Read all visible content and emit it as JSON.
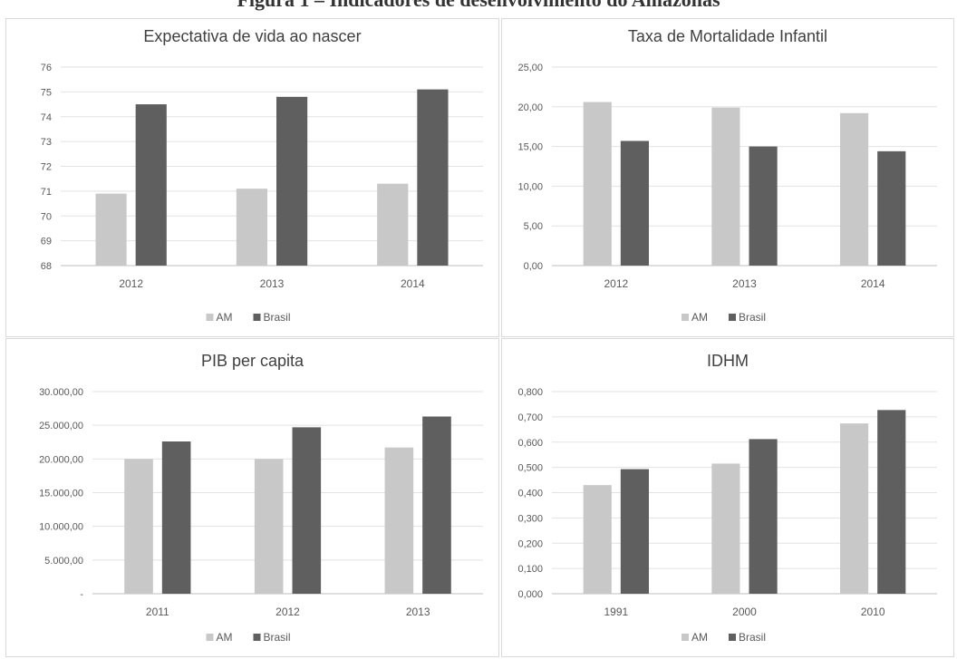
{
  "page": {
    "title": "Figura 1 – Indicadores de desenvolvimento do Amazonas"
  },
  "colors": {
    "am": "#c8c8c8",
    "brasil": "#5f5f5f",
    "grid": "#e2e2e2",
    "axis": "#bfbfbf",
    "text": "#595959",
    "title": "#404040"
  },
  "chart_data": [
    {
      "type": "bar",
      "title": "Expectativa de vida ao nascer",
      "xlabel": "",
      "ylabel": "",
      "categories": [
        "2012",
        "2013",
        "2014"
      ],
      "series": [
        {
          "name": "AM",
          "values": [
            70.9,
            71.1,
            71.3
          ]
        },
        {
          "name": "Brasil",
          "values": [
            74.5,
            74.8,
            75.1
          ]
        }
      ],
      "ylim": [
        68,
        76
      ],
      "yticks": [
        68,
        69,
        70,
        71,
        72,
        73,
        74,
        75,
        76
      ],
      "ytick_labels": [
        "68",
        "69",
        "70",
        "71",
        "72",
        "73",
        "74",
        "75",
        "76"
      ],
      "grid": true,
      "legend": "bottom"
    },
    {
      "type": "bar",
      "title": "Taxa de Mortalidade Infantil",
      "xlabel": "",
      "ylabel": "",
      "categories": [
        "2012",
        "2013",
        "2014"
      ],
      "series": [
        {
          "name": "AM",
          "values": [
            20.6,
            19.9,
            19.2
          ]
        },
        {
          "name": "Brasil",
          "values": [
            15.7,
            15.0,
            14.4
          ]
        }
      ],
      "ylim": [
        0,
        25
      ],
      "yticks": [
        0,
        5,
        10,
        15,
        20,
        25
      ],
      "ytick_labels": [
        "0,00",
        "5,00",
        "10,00",
        "15,00",
        "20,00",
        "25,00"
      ],
      "grid": true,
      "legend": "bottom"
    },
    {
      "type": "bar",
      "title": "PIB per capita",
      "xlabel": "",
      "ylabel": "",
      "categories": [
        "2011",
        "2012",
        "2013"
      ],
      "series": [
        {
          "name": "AM",
          "values": [
            20000,
            20000,
            21700
          ]
        },
        {
          "name": "Brasil",
          "values": [
            22600,
            24700,
            26300
          ]
        }
      ],
      "ylim": [
        0,
        30000
      ],
      "yticks": [
        0,
        5000,
        10000,
        15000,
        20000,
        25000,
        30000
      ],
      "ytick_labels": [
        "-",
        "5.000,00",
        "10.000,00",
        "15.000,00",
        "20.000,00",
        "25.000,00",
        "30.000,00"
      ],
      "grid": true,
      "legend": "bottom"
    },
    {
      "type": "bar",
      "title": "IDHM",
      "xlabel": "",
      "ylabel": "",
      "categories": [
        "1991",
        "2000",
        "2010"
      ],
      "series": [
        {
          "name": "AM",
          "values": [
            0.43,
            0.515,
            0.674
          ]
        },
        {
          "name": "Brasil",
          "values": [
            0.493,
            0.612,
            0.727
          ]
        }
      ],
      "ylim": [
        0,
        0.8
      ],
      "yticks": [
        0,
        0.1,
        0.2,
        0.3,
        0.4,
        0.5,
        0.6,
        0.7,
        0.8
      ],
      "ytick_labels": [
        "0,000",
        "0,100",
        "0,200",
        "0,300",
        "0,400",
        "0,500",
        "0,600",
        "0,700",
        "0,800"
      ],
      "grid": true,
      "legend": "bottom"
    }
  ]
}
